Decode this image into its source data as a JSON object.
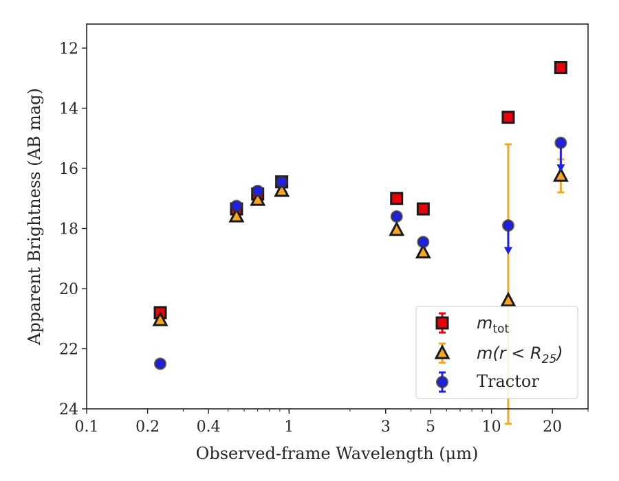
{
  "chart_data": {
    "type": "scatter",
    "xscale": "log",
    "xlim": [
      0.1,
      30
    ],
    "ylim": [
      24,
      11.2
    ],
    "y_inverted": true,
    "xlabel": "Observed-frame Wavelength (μm)",
    "ylabel": "Apparent Brightness (AB mag)",
    "x_ticks": [
      {
        "value": 0.1,
        "label": "0.1"
      },
      {
        "value": 0.2,
        "label": "0.2"
      },
      {
        "value": 0.4,
        "label": "0.4"
      },
      {
        "value": 1,
        "label": "1"
      },
      {
        "value": 3,
        "label": "3"
      },
      {
        "value": 5,
        "label": "5"
      },
      {
        "value": 10,
        "label": "10"
      },
      {
        "value": 20,
        "label": "20"
      }
    ],
    "x_minor_ticks": [
      0.3,
      0.5,
      0.6,
      0.7,
      0.8,
      0.9,
      2,
      4,
      6,
      7,
      8,
      9,
      30
    ],
    "y_ticks": [
      {
        "value": 12,
        "label": "12"
      },
      {
        "value": 14,
        "label": "14"
      },
      {
        "value": 16,
        "label": "16"
      },
      {
        "value": 18,
        "label": "18"
      },
      {
        "value": 20,
        "label": "20"
      },
      {
        "value": 22,
        "label": "22"
      },
      {
        "value": 24,
        "label": "24"
      }
    ],
    "legend_position": "lower-right",
    "grid": false,
    "series": [
      {
        "name": "m_tot",
        "legend_label_main": "m",
        "legend_label_sub": "tot",
        "marker": "square",
        "color": "#e8000b",
        "points": [
          {
            "x": 0.231,
            "y": 20.8,
            "err": 0.1
          },
          {
            "x": 0.55,
            "y": 17.35,
            "err": 0.05
          },
          {
            "x": 0.7,
            "y": 16.85,
            "err": 0.05
          },
          {
            "x": 0.92,
            "y": 16.45,
            "err": 0.05
          },
          {
            "x": 3.4,
            "y": 17.0,
            "err": 0.05
          },
          {
            "x": 4.6,
            "y": 17.35,
            "err": 0.05
          },
          {
            "x": 12.1,
            "y": 14.3,
            "err": 0.05
          },
          {
            "x": 22.0,
            "y": 12.65,
            "err": 0.05
          }
        ]
      },
      {
        "name": "m(r < R_25)",
        "legend_label_main": "m(r < R",
        "legend_label_sub": "25",
        "legend_label_tail": ")",
        "marker": "triangle",
        "color": "#f5a623",
        "points": [
          {
            "x": 0.231,
            "y": 21.05,
            "err": 0.05
          },
          {
            "x": 0.55,
            "y": 17.6,
            "err": 0.05
          },
          {
            "x": 0.7,
            "y": 17.05,
            "err": 0.05
          },
          {
            "x": 0.92,
            "y": 16.75,
            "err": 0.05
          },
          {
            "x": 3.4,
            "y": 18.05,
            "err": 0.05
          },
          {
            "x": 4.6,
            "y": 18.8,
            "err": 0.05
          },
          {
            "x": 12.1,
            "y": 20.4,
            "err_lo": 5.2,
            "err_hi": 4.1
          },
          {
            "x": 22.0,
            "y": 16.25,
            "err_lo": 0.55,
            "err_hi": 0.55
          }
        ]
      },
      {
        "name": "Tractor",
        "legend_label_main": "Tractor",
        "marker": "circle",
        "color": "#1f1fe6",
        "points": [
          {
            "x": 0.231,
            "y": 22.5,
            "err": 0.05
          },
          {
            "x": 0.55,
            "y": 17.25,
            "err": 0.05
          },
          {
            "x": 0.7,
            "y": 16.75,
            "err": 0.05
          },
          {
            "x": 0.92,
            "y": 16.45,
            "err": 0.05
          },
          {
            "x": 3.4,
            "y": 17.6,
            "err": 0.05
          },
          {
            "x": 4.6,
            "y": 18.45,
            "err": 0.05
          },
          {
            "x": 12.1,
            "y": 17.9,
            "upper_limit_arrow_to": 18.8
          },
          {
            "x": 22.0,
            "y": 15.15,
            "upper_limit_arrow_to": 16.05
          }
        ]
      }
    ]
  }
}
